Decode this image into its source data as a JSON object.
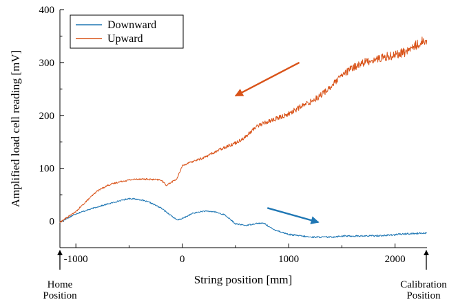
{
  "chart_data": {
    "type": "line",
    "title": "",
    "xlabel": "String position [mm]",
    "ylabel": "Amplified load cell reading [mV]",
    "xlim": [
      -1150,
      2300
    ],
    "ylim": [
      -50,
      400
    ],
    "xticks": [
      -1000,
      0,
      1000,
      2000
    ],
    "xtick_labels": [
      "-1000",
      "0",
      "1000",
      "2000"
    ],
    "yticks": [
      0,
      100,
      200,
      300,
      400
    ],
    "ytick_labels": [
      "0",
      "100",
      "200",
      "300",
      "400"
    ],
    "grid": false,
    "legend_position": "top-left",
    "series": [
      {
        "name": "Downward",
        "color": "#1f77b4",
        "x": [
          -1150,
          -1000,
          -800,
          -600,
          -500,
          -400,
          -300,
          -200,
          -100,
          -50,
          0,
          100,
          200,
          300,
          400,
          500,
          600,
          700,
          770,
          850,
          1000,
          1200,
          1300,
          1400,
          1500,
          1700,
          1900,
          2100,
          2300
        ],
        "y": [
          -2,
          14,
          27,
          38,
          43,
          41,
          35,
          25,
          10,
          2,
          5,
          15,
          19,
          18,
          12,
          -5,
          -8,
          -4,
          -4,
          -15,
          -25,
          -30,
          -30,
          -30,
          -28,
          -28,
          -27,
          -24,
          -22
        ]
      },
      {
        "name": "Upward",
        "color": "#d95319",
        "x": [
          -1150,
          -1000,
          -900,
          -800,
          -700,
          -600,
          -500,
          -400,
          -300,
          -200,
          -150,
          -50,
          0,
          100,
          200,
          300,
          400,
          500,
          600,
          700,
          800,
          900,
          1000,
          1100,
          1200,
          1300,
          1400,
          1500,
          1600,
          1700,
          1800,
          1900,
          2000,
          2100,
          2200,
          2300
        ],
        "y": [
          -2,
          18,
          38,
          57,
          68,
          74,
          78,
          80,
          79,
          78,
          68,
          80,
          105,
          113,
          120,
          130,
          140,
          148,
          160,
          180,
          188,
          195,
          203,
          215,
          225,
          238,
          255,
          275,
          290,
          300,
          305,
          310,
          315,
          320,
          333,
          345
        ]
      }
    ],
    "annotations": [
      {
        "text_lines": [
          "Home",
          "Position"
        ],
        "x": -1150
      },
      {
        "text_lines": [
          "Calibration",
          "Position"
        ],
        "x": 2300
      }
    ],
    "direction_arrows": [
      {
        "series": "Upward",
        "from": [
          1100,
          300
        ],
        "to": [
          500,
          237
        ]
      },
      {
        "series": "Downward",
        "from": [
          800,
          25
        ],
        "to": [
          1280,
          -2
        ]
      }
    ]
  }
}
